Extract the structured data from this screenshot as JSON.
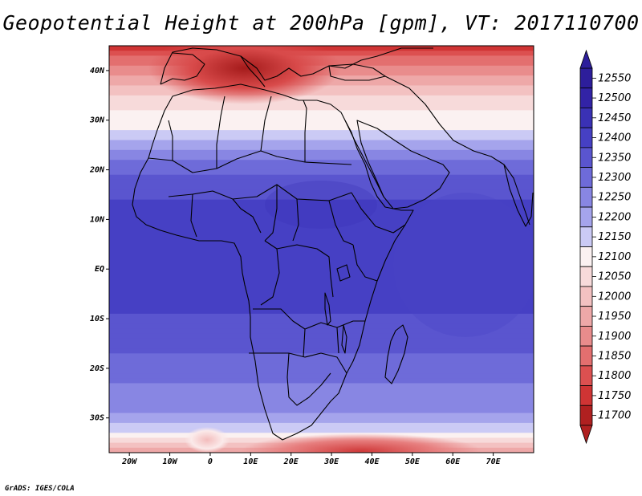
{
  "title": "Geopotential Height at 200hPa [gpm], VT: 2017110700",
  "footer": "GrADS: IGES/COLA",
  "map": {
    "region": "Africa",
    "lon_range": [
      -25,
      80
    ],
    "lat_range": [
      -37,
      45
    ],
    "lon_ticks": [
      {
        "lon": -20,
        "label": "20W"
      },
      {
        "lon": -10,
        "label": "10W"
      },
      {
        "lon": 0,
        "label": "0"
      },
      {
        "lon": 10,
        "label": "10E"
      },
      {
        "lon": 20,
        "label": "20E"
      },
      {
        "lon": 30,
        "label": "30E"
      },
      {
        "lon": 40,
        "label": "40E"
      },
      {
        "lon": 50,
        "label": "50E"
      },
      {
        "lon": 60,
        "label": "60E"
      },
      {
        "lon": 70,
        "label": "70E"
      }
    ],
    "lat_ticks": [
      {
        "lat": 40,
        "label": "40N"
      },
      {
        "lat": 30,
        "label": "30N"
      },
      {
        "lat": 20,
        "label": "20N"
      },
      {
        "lat": 10,
        "label": "10N"
      },
      {
        "lat": 0,
        "label": "EQ"
      },
      {
        "lat": -10,
        "label": "10S"
      },
      {
        "lat": -20,
        "label": "20S"
      },
      {
        "lat": -30,
        "label": "30S"
      }
    ],
    "field_profile": [
      {
        "lat": 45,
        "value": 11760
      },
      {
        "lat": 38,
        "value": 11950
      },
      {
        "lat": 33,
        "value": 12060
      },
      {
        "lat": 27,
        "value": 12140
      },
      {
        "lat": 22,
        "value": 12280
      },
      {
        "lat": 15,
        "value": 12370
      },
      {
        "lat": 5,
        "value": 12420
      },
      {
        "lat": -5,
        "value": 12400
      },
      {
        "lat": -12,
        "value": 12360
      },
      {
        "lat": -18,
        "value": 12320
      },
      {
        "lat": -24,
        "value": 12260
      },
      {
        "lat": -29,
        "value": 12230
      },
      {
        "lat": -33,
        "value": 12120
      },
      {
        "lat": -37,
        "value": 11950
      }
    ]
  },
  "colorbar": {
    "levels": [
      {
        "label": "12550",
        "color": "#2d1e9b"
      },
      {
        "label": "12500",
        "color": "#3223a6"
      },
      {
        "label": "12450",
        "color": "#3a31b5"
      },
      {
        "label": "12400",
        "color": "#4640c4"
      },
      {
        "label": "12350",
        "color": "#5a55cf"
      },
      {
        "label": "12300",
        "color": "#6e6bd9"
      },
      {
        "label": "12250",
        "color": "#8886e3"
      },
      {
        "label": "12200",
        "color": "#a5a4ec"
      },
      {
        "label": "12150",
        "color": "#cbcaf5"
      },
      {
        "label": "12100",
        "color": "#fbf1f1"
      },
      {
        "label": "12050",
        "color": "#f7dada"
      },
      {
        "label": "12000",
        "color": "#f3c1c1"
      },
      {
        "label": "11950",
        "color": "#eea8a8"
      },
      {
        "label": "11900",
        "color": "#e98c8c"
      },
      {
        "label": "11850",
        "color": "#e36f6f"
      },
      {
        "label": "11800",
        "color": "#dc5050"
      },
      {
        "label": "11750",
        "color": "#cf3434"
      },
      {
        "label": "11700",
        "color": "#b02020"
      }
    ]
  }
}
